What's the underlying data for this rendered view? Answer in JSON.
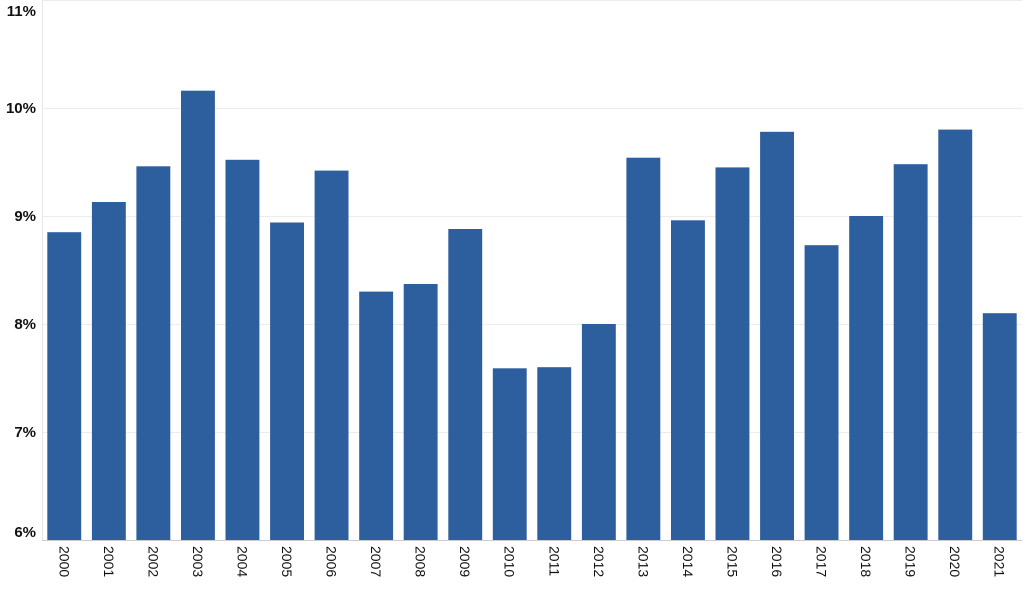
{
  "chart_data": {
    "type": "bar",
    "title": "",
    "xlabel": "",
    "ylabel": "",
    "ylim": [
      6,
      11
    ],
    "y_ticks": [
      6,
      7,
      8,
      9,
      10,
      11
    ],
    "y_tick_format": "%",
    "grid": "horizontal",
    "bar_color": "#2d5f9f",
    "categories": [
      "2000",
      "2001",
      "2002",
      "2003",
      "2004",
      "2005",
      "2006",
      "2007",
      "2008",
      "2009",
      "2010",
      "2011",
      "2012",
      "2013",
      "2014",
      "2015",
      "2016",
      "2017",
      "2018",
      "2019",
      "2020",
      "2021"
    ],
    "values": [
      8.85,
      9.13,
      9.46,
      10.16,
      9.52,
      8.94,
      9.42,
      8.3,
      8.37,
      8.88,
      7.59,
      7.6,
      8.0,
      9.54,
      8.96,
      9.45,
      9.78,
      8.73,
      9.0,
      9.48,
      9.8,
      8.1
    ]
  }
}
